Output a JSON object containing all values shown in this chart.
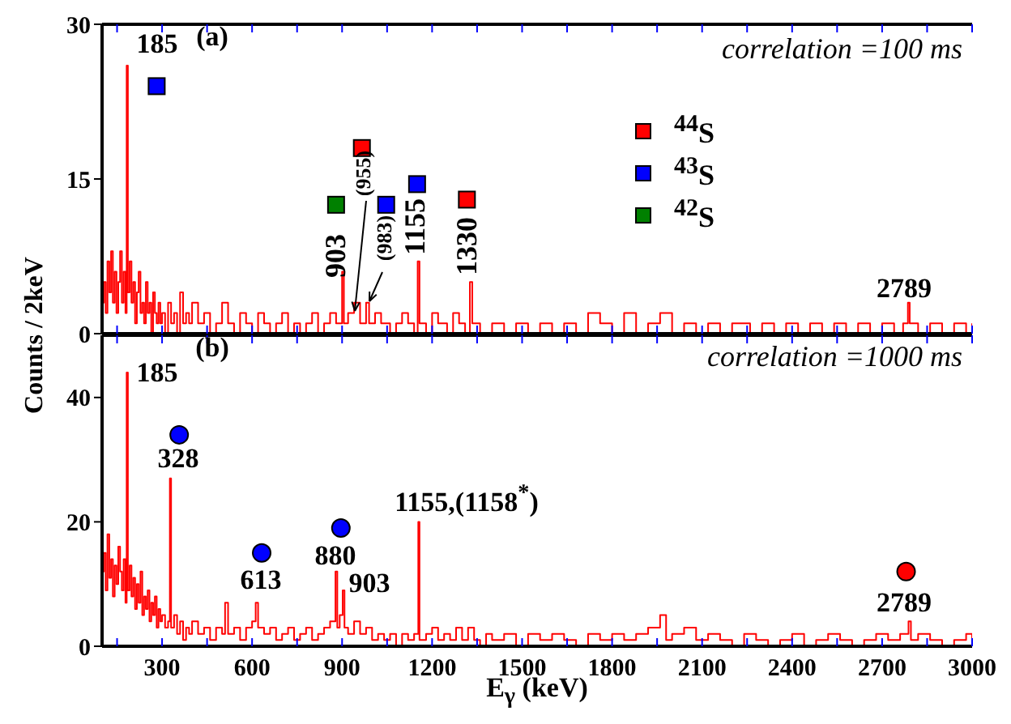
{
  "chart_data": [
    {
      "type": "step",
      "ylabel": "Counts / 2keV",
      "xlim": [
        100,
        3000
      ],
      "ylim": [
        0,
        30
      ],
      "yticks": [
        0,
        15,
        30
      ],
      "tick_labels": "y",
      "legend": "right",
      "xticks": [
        {
          "value": 150,
          "label": null
        },
        300,
        {
          "value": 450,
          "label": null
        },
        600,
        {
          "value": 750,
          "label": null
        },
        900,
        {
          "value": 1050,
          "label": null
        },
        1200,
        {
          "value": 1350,
          "label": null
        },
        1500,
        {
          "value": 1650,
          "label": null
        },
        1800,
        {
          "value": 1950,
          "label": null
        },
        2100,
        {
          "value": 2250,
          "label": null
        },
        2400,
        {
          "value": 2550,
          "label": null
        },
        2700,
        {
          "value": 2850,
          "label": null
        },
        3000
      ],
      "annotations": [
        "(a)",
        "correlation =100 ms",
        "185",
        "903",
        "(955)",
        "(983)",
        "1155",
        "1330",
        "2789"
      ],
      "series": [
        {
          "color": "#ff0000",
          "x": [
            100,
            106,
            112,
            118,
            124,
            130,
            136,
            142,
            148,
            154,
            160,
            166,
            172,
            178,
            182,
            186,
            192,
            198,
            204,
            210,
            216,
            222,
            228,
            234,
            240,
            246,
            252,
            258,
            264,
            270,
            276,
            282,
            288,
            294,
            300,
            310,
            320,
            330,
            340,
            350,
            360,
            370,
            380,
            390,
            400,
            420,
            440,
            460,
            480,
            500,
            520,
            540,
            560,
            580,
            600,
            620,
            640,
            660,
            680,
            700,
            720,
            740,
            760,
            780,
            800,
            820,
            840,
            860,
            880,
            900,
            906,
            920,
            940,
            960,
            980,
            990,
            1010,
            1030,
            1060,
            1080,
            1100,
            1120,
            1140,
            1152,
            1158,
            1180,
            1200,
            1220,
            1250,
            1270,
            1290,
            1310,
            1326,
            1334,
            1360,
            1400,
            1440,
            1480,
            1520,
            1560,
            1600,
            1640,
            1680,
            1720,
            1760,
            1800,
            1840,
            1880,
            1920,
            1960,
            2000,
            2040,
            2080,
            2120,
            2160,
            2200,
            2260,
            2300,
            2340,
            2380,
            2420,
            2460,
            2500,
            2540,
            2580,
            2620,
            2660,
            2700,
            2740,
            2770,
            2786,
            2792,
            2820,
            2860,
            2900,
            2940,
            2980,
            3000
          ],
          "values": [
            3,
            5,
            2,
            7,
            4,
            8,
            3,
            6,
            2,
            5,
            8,
            3,
            6,
            2,
            26,
            4,
            7,
            3,
            5,
            1,
            4,
            6,
            2,
            3,
            1,
            5,
            2,
            3,
            0,
            4,
            2,
            1,
            3,
            1,
            2,
            0,
            3,
            1,
            2,
            0,
            4,
            1,
            2,
            1,
            3,
            1,
            2,
            0,
            1,
            3,
            1,
            0,
            2,
            1,
            0,
            2,
            1,
            0,
            1,
            2,
            0,
            1,
            0,
            1,
            2,
            0,
            1,
            2,
            1,
            6,
            1,
            2,
            3,
            1,
            3,
            1,
            2,
            1,
            0,
            1,
            2,
            1,
            0,
            7,
            1,
            0,
            2,
            1,
            0,
            2,
            1,
            0,
            5,
            1,
            0,
            1,
            0,
            1,
            0,
            1,
            0,
            1,
            0,
            2,
            1,
            0,
            2,
            0,
            1,
            2,
            0,
            1,
            0,
            1,
            0,
            1,
            0,
            1,
            0,
            1,
            0,
            1,
            0,
            1,
            0,
            1,
            0,
            1,
            0,
            1,
            3,
            1,
            0,
            1,
            0,
            1,
            0,
            1
          ]
        },
        {
          "type": "scatter",
          "name": "$^{44}$S",
          "marker": "square",
          "color": "#ff0000",
          "x": [
            966,
            1316
          ],
          "values": [
            18,
            13
          ]
        },
        {
          "type": "scatter",
          "name": "$^{43}$S",
          "marker": "square",
          "color": "#0000ff",
          "x": [
            282,
            1047,
            1150
          ],
          "values": [
            24,
            12.5,
            14.5
          ]
        },
        {
          "type": "scatter",
          "name": "$^{42}$S",
          "marker": "square",
          "color": "#008000",
          "x": [
            880
          ],
          "values": [
            12.5
          ]
        }
      ]
    },
    {
      "type": "step",
      "xlabel": "E$_{γ}$ (keV)",
      "xlim": [
        100,
        3000
      ],
      "ylim": [
        0,
        50
      ],
      "yticks": [
        0,
        20,
        40
      ],
      "xticks": [
        {
          "value": 150,
          "label": null
        },
        300,
        {
          "value": 450,
          "label": null
        },
        600,
        {
          "value": 750,
          "label": null
        },
        900,
        {
          "value": 1050,
          "label": null
        },
        1200,
        {
          "value": 1350,
          "label": null
        },
        1500,
        {
          "value": 1650,
          "label": null
        },
        1800,
        {
          "value": 1950,
          "label": null
        },
        2100,
        {
          "value": 2250,
          "label": null
        },
        2400,
        {
          "value": 2550,
          "label": null
        },
        2700,
        {
          "value": 2850,
          "label": null
        },
        3000
      ],
      "annotations": [
        "(b)",
        "correlation =1000 ms",
        "185",
        "328",
        "613",
        "880",
        "903",
        "1155,(1158$^{*}$)",
        "2789"
      ],
      "series": [
        {
          "color": "#ff0000",
          "x": [
            100,
            106,
            112,
            118,
            124,
            130,
            136,
            142,
            148,
            154,
            160,
            166,
            172,
            178,
            182,
            186,
            192,
            198,
            204,
            210,
            216,
            222,
            228,
            234,
            240,
            246,
            252,
            258,
            264,
            270,
            276,
            282,
            288,
            294,
            300,
            310,
            320,
            326,
            330,
            340,
            350,
            360,
            370,
            380,
            390,
            400,
            420,
            440,
            460,
            480,
            500,
            510,
            520,
            540,
            560,
            580,
            600,
            612,
            620,
            640,
            660,
            680,
            700,
            720,
            740,
            760,
            780,
            800,
            820,
            840,
            860,
            878,
            884,
            892,
            902,
            908,
            920,
            940,
            960,
            980,
            1000,
            1020,
            1040,
            1060,
            1080,
            1100,
            1120,
            1140,
            1154,
            1158,
            1180,
            1200,
            1220,
            1240,
            1260,
            1280,
            1300,
            1320,
            1340,
            1360,
            1380,
            1400,
            1440,
            1480,
            1520,
            1560,
            1600,
            1640,
            1680,
            1720,
            1760,
            1800,
            1840,
            1880,
            1920,
            1960,
            1980,
            2000,
            2040,
            2080,
            2120,
            2160,
            2200,
            2240,
            2280,
            2320,
            2360,
            2400,
            2440,
            2480,
            2520,
            2560,
            2600,
            2640,
            2680,
            2720,
            2760,
            2788,
            2796,
            2820,
            2860,
            2900,
            2940,
            2980,
            3000
          ],
          "values": [
            12,
            15,
            9,
            18,
            11,
            14,
            8,
            13,
            10,
            16,
            12,
            9,
            14,
            7,
            44,
            9,
            13,
            8,
            11,
            6,
            10,
            7,
            12,
            5,
            8,
            6,
            9,
            4,
            7,
            5,
            8,
            3,
            6,
            4,
            5,
            3,
            4,
            27,
            3,
            5,
            2,
            4,
            1,
            3,
            2,
            4,
            2,
            3,
            1,
            3,
            2,
            7,
            2,
            3,
            1,
            3,
            4,
            7,
            3,
            2,
            3,
            1,
            2,
            3,
            1,
            2,
            3,
            1,
            2,
            3,
            4,
            12,
            3,
            5,
            9,
            3,
            2,
            4,
            2,
            3,
            1,
            2,
            1,
            2,
            0,
            2,
            1,
            2,
            20,
            1,
            2,
            3,
            1,
            2,
            1,
            3,
            1,
            3,
            1,
            0,
            2,
            1,
            2,
            0,
            2,
            1,
            2,
            1,
            0,
            2,
            1,
            2,
            1,
            2,
            3,
            5,
            1,
            2,
            3,
            1,
            2,
            1,
            0,
            2,
            1,
            0,
            1,
            2,
            0,
            1,
            2,
            1,
            0,
            1,
            2,
            1,
            2,
            4,
            1,
            2,
            1,
            0,
            1,
            2,
            1
          ]
        },
        {
          "type": "scatter",
          "marker": "circle",
          "color": "#0000ff",
          "x": [
            357,
            632,
            896
          ],
          "values": [
            34,
            15,
            19
          ]
        },
        {
          "type": "scatter",
          "marker": "circle",
          "color": "#ff0000",
          "x": [
            2780
          ],
          "values": [
            12
          ]
        }
      ]
    }
  ]
}
